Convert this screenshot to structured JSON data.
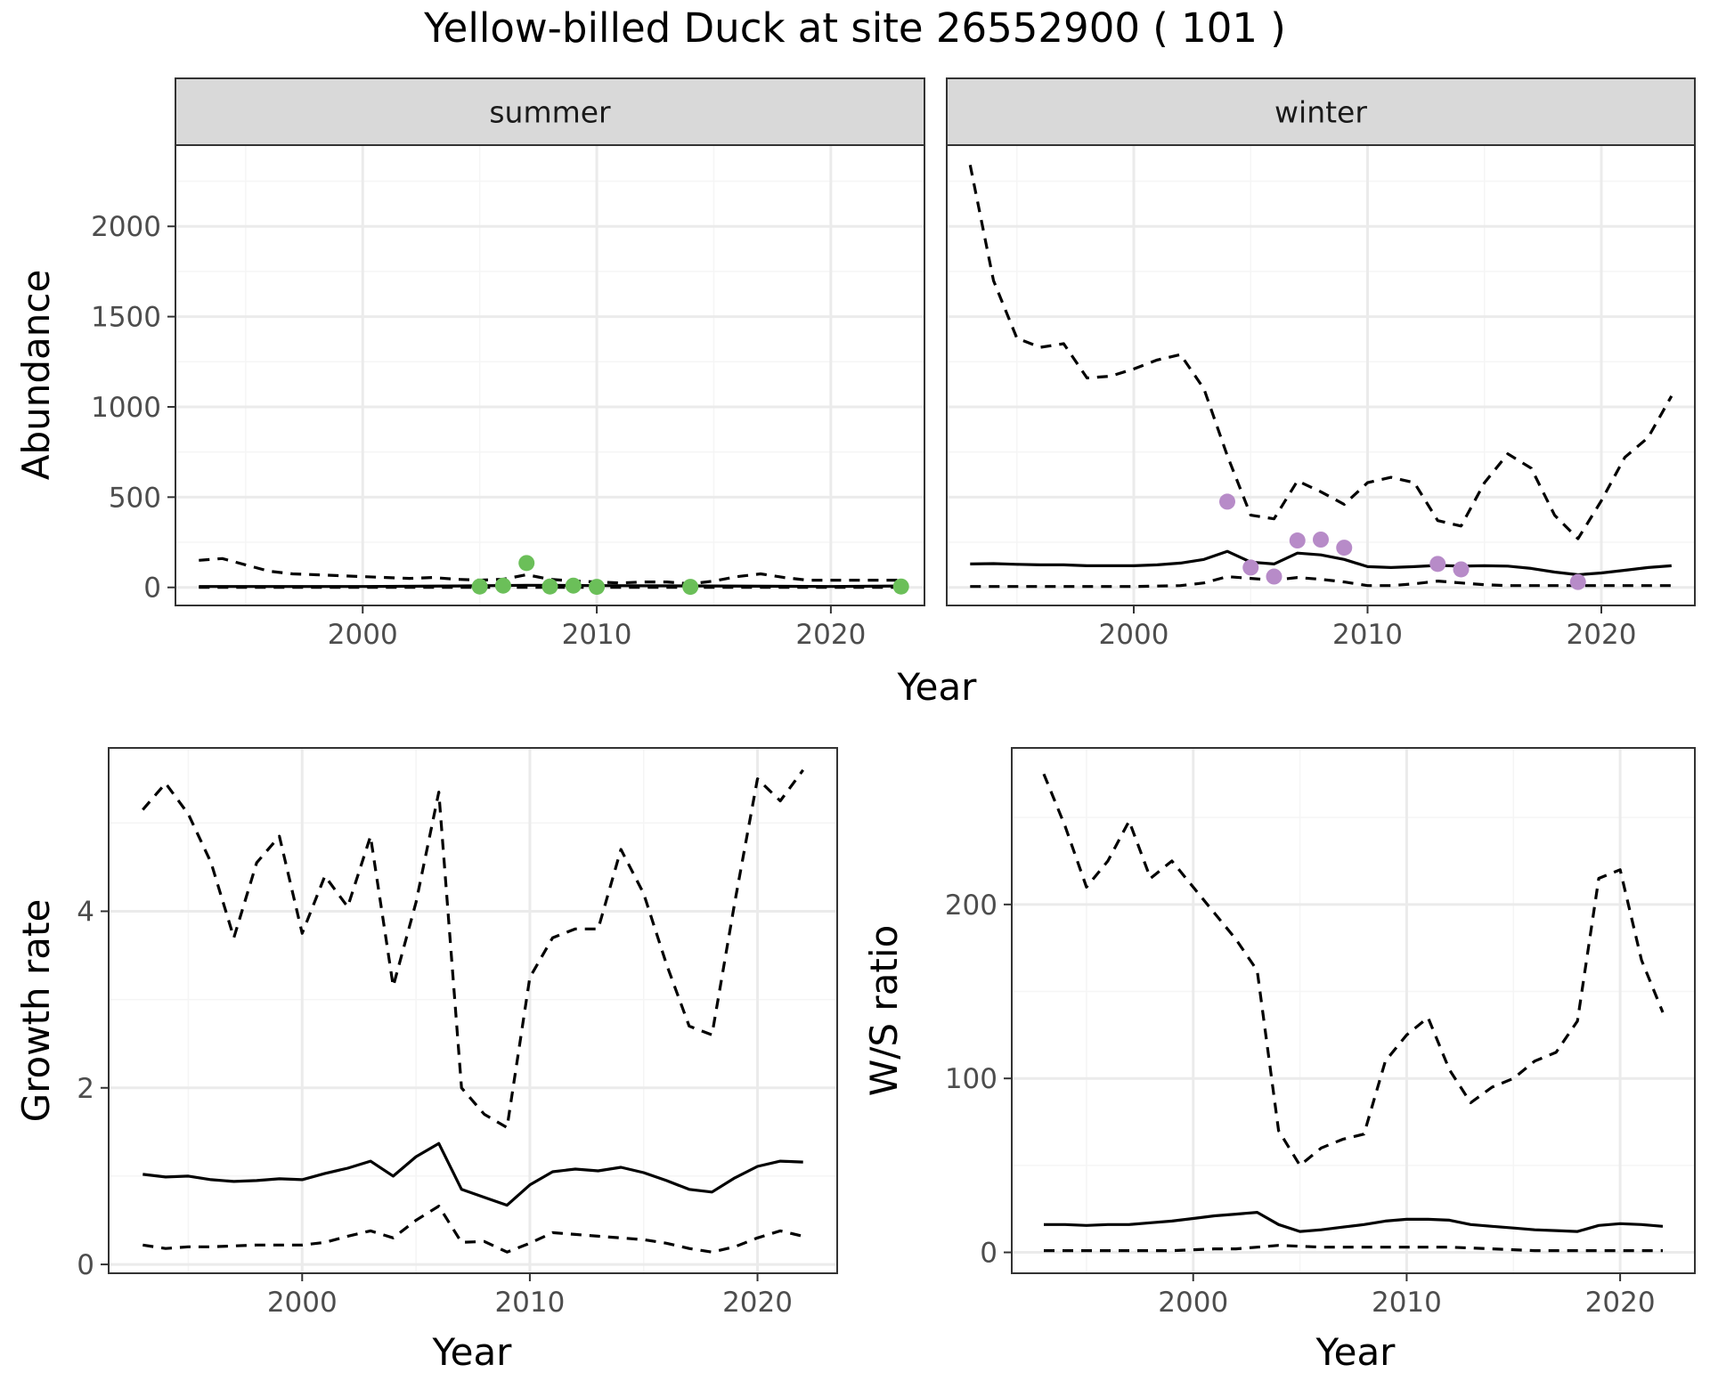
{
  "title": "Yellow-billed Duck at site 26552900 ( 101 )",
  "colors": {
    "summer_points": "#6bbf59",
    "winter_points": "#b78bc8",
    "line": "#000000",
    "strip_fill": "#d9d9d9",
    "grid_major": "#ebebeb",
    "grid_minor": "#f5f5f5"
  },
  "chart_data": [
    {
      "type": "line",
      "panel": "summer",
      "strip_label": "summer",
      "xlabel": "Year",
      "ylabel": "Abundance",
      "xlim": [
        1992,
        2024
      ],
      "ylim": [
        -100,
        2450
      ],
      "xticks": [
        2000,
        2010,
        2020
      ],
      "yticks": [
        0,
        500,
        1000,
        1500,
        2000
      ],
      "series": [
        {
          "name": "mean",
          "style": "solid",
          "x": [
            1993,
            1995,
            2000,
            2004,
            2007,
            2010,
            2015,
            2020,
            2023
          ],
          "y": [
            5,
            5,
            5,
            8,
            12,
            10,
            8,
            5,
            8
          ]
        },
        {
          "name": "upper",
          "style": "dashed",
          "x": [
            1993,
            1994,
            1995,
            1996,
            1997,
            1998,
            1999,
            2000,
            2001,
            2002,
            2003,
            2004,
            2005,
            2006,
            2007,
            2008,
            2009,
            2010,
            2011,
            2012,
            2013,
            2014,
            2015,
            2016,
            2017,
            2018,
            2019,
            2020,
            2021,
            2022,
            2023
          ],
          "y": [
            150,
            160,
            125,
            90,
            75,
            70,
            65,
            60,
            55,
            50,
            55,
            45,
            40,
            45,
            70,
            45,
            35,
            30,
            25,
            30,
            30,
            20,
            35,
            60,
            75,
            55,
            40,
            40,
            40,
            40,
            40
          ]
        },
        {
          "name": "lower",
          "style": "dashed",
          "x": [
            1993,
            2000,
            2010,
            2020,
            2023
          ],
          "y": [
            0,
            0,
            0,
            0,
            0
          ]
        },
        {
          "name": "observed",
          "style": "points",
          "x": [
            2005,
            2006,
            2007,
            2008,
            2009,
            2010,
            2014,
            2023
          ],
          "y": [
            5,
            10,
            135,
            5,
            10,
            3,
            3,
            5
          ]
        }
      ]
    },
    {
      "type": "line",
      "panel": "winter",
      "strip_label": "winter",
      "xlabel": "Year",
      "ylabel": "Abundance",
      "xlim": [
        1992,
        2024
      ],
      "ylim": [
        -100,
        2450
      ],
      "xticks": [
        2000,
        2010,
        2020
      ],
      "yticks": [
        0,
        500,
        1000,
        1500,
        2000
      ],
      "series": [
        {
          "name": "mean",
          "style": "solid",
          "x": [
            1993,
            1994,
            1995,
            1996,
            1997,
            1998,
            1999,
            2000,
            2001,
            2002,
            2003,
            2004,
            2005,
            2006,
            2007,
            2008,
            2009,
            2010,
            2011,
            2012,
            2013,
            2014,
            2015,
            2016,
            2017,
            2018,
            2019,
            2020,
            2021,
            2022,
            2023
          ],
          "y": [
            130,
            132,
            128,
            125,
            125,
            120,
            120,
            120,
            125,
            135,
            155,
            200,
            140,
            130,
            190,
            180,
            155,
            115,
            110,
            115,
            122,
            118,
            120,
            118,
            105,
            85,
            70,
            80,
            95,
            110,
            120
          ]
        },
        {
          "name": "upper",
          "style": "dashed",
          "x": [
            1993,
            1994,
            1995,
            1996,
            1997,
            1998,
            1999,
            2000,
            2001,
            2002,
            2003,
            2004,
            2005,
            2006,
            2007,
            2008,
            2009,
            2010,
            2011,
            2012,
            2013,
            2014,
            2015,
            2016,
            2017,
            2018,
            2019,
            2020,
            2021,
            2022,
            2023
          ],
          "y": [
            2340,
            1700,
            1380,
            1330,
            1350,
            1160,
            1170,
            1210,
            1260,
            1290,
            1100,
            730,
            400,
            380,
            590,
            530,
            460,
            580,
            610,
            580,
            370,
            340,
            580,
            740,
            660,
            400,
            270,
            480,
            720,
            830,
            1060
          ]
        },
        {
          "name": "lower",
          "style": "dashed",
          "x": [
            1993,
            1996,
            2000,
            2002,
            2003,
            2004,
            2005,
            2006,
            2007,
            2008,
            2009,
            2010,
            2011,
            2012,
            2013,
            2014,
            2015,
            2016,
            2017,
            2018,
            2019,
            2020,
            2023
          ],
          "y": [
            5,
            5,
            5,
            10,
            25,
            60,
            50,
            40,
            55,
            45,
            30,
            10,
            10,
            20,
            35,
            25,
            15,
            10,
            10,
            10,
            10,
            10,
            10
          ]
        },
        {
          "name": "observed",
          "style": "points",
          "x": [
            2004,
            2005,
            2006,
            2007,
            2008,
            2009,
            2013,
            2014,
            2019
          ],
          "y": [
            475,
            110,
            60,
            260,
            265,
            220,
            130,
            100,
            30
          ]
        }
      ]
    },
    {
      "type": "line",
      "panel": "growth",
      "xlabel": "Year",
      "ylabel": "Growth rate",
      "xlim": [
        1991.5,
        2023.5
      ],
      "ylim": [
        -0.1,
        5.85
      ],
      "xticks": [
        2000,
        2010,
        2020
      ],
      "yticks": [
        0,
        2,
        4
      ],
      "series": [
        {
          "name": "mean",
          "style": "solid",
          "x": [
            1993,
            1994,
            1995,
            1996,
            1997,
            1998,
            1999,
            2000,
            2001,
            2002,
            2003,
            2004,
            2005,
            2006,
            2007,
            2008,
            2009,
            2010,
            2011,
            2012,
            2013,
            2014,
            2015,
            2016,
            2017,
            2018,
            2019,
            2020,
            2021,
            2022
          ],
          "y": [
            1.02,
            0.99,
            1.0,
            0.96,
            0.94,
            0.95,
            0.97,
            0.96,
            1.03,
            1.09,
            1.17,
            1.0,
            1.22,
            1.37,
            0.85,
            0.76,
            0.67,
            0.9,
            1.05,
            1.08,
            1.06,
            1.1,
            1.04,
            0.95,
            0.85,
            0.82,
            0.98,
            1.11,
            1.17,
            1.16
          ]
        },
        {
          "name": "upper",
          "style": "dashed",
          "x": [
            1993,
            1994,
            1995,
            1996,
            1997,
            1998,
            1999,
            2000,
            2001,
            2002,
            2003,
            2004,
            2005,
            2006,
            2007,
            2008,
            2009,
            2010,
            2011,
            2012,
            2013,
            2014,
            2015,
            2016,
            2017,
            2018,
            2019,
            2020,
            2021,
            2022
          ],
          "y": [
            5.15,
            5.45,
            5.1,
            4.55,
            3.7,
            4.55,
            4.85,
            3.75,
            4.4,
            4.05,
            4.85,
            3.15,
            4.1,
            5.35,
            2.0,
            1.7,
            1.55,
            3.25,
            3.7,
            3.8,
            3.8,
            4.7,
            4.2,
            3.4,
            2.7,
            2.6,
            4.1,
            5.5,
            5.25,
            5.6
          ]
        },
        {
          "name": "lower",
          "style": "dashed",
          "x": [
            1993,
            1994,
            1995,
            1996,
            1997,
            1998,
            1999,
            2000,
            2001,
            2002,
            2003,
            2004,
            2005,
            2006,
            2007,
            2008,
            2009,
            2010,
            2011,
            2012,
            2013,
            2014,
            2015,
            2016,
            2017,
            2018,
            2019,
            2020,
            2021,
            2022
          ],
          "y": [
            0.22,
            0.18,
            0.2,
            0.2,
            0.21,
            0.22,
            0.22,
            0.22,
            0.25,
            0.32,
            0.38,
            0.3,
            0.5,
            0.66,
            0.25,
            0.26,
            0.14,
            0.24,
            0.36,
            0.34,
            0.32,
            0.3,
            0.28,
            0.24,
            0.18,
            0.14,
            0.2,
            0.3,
            0.38,
            0.32
          ]
        }
      ]
    },
    {
      "type": "line",
      "panel": "ws_ratio",
      "xlabel": "Year",
      "ylabel": "W/S ratio",
      "xlim": [
        1991.5,
        2023.5
      ],
      "ylim": [
        -12,
        290
      ],
      "xticks": [
        2000,
        2010,
        2020
      ],
      "yticks": [
        0,
        100,
        200
      ],
      "series": [
        {
          "name": "mean",
          "style": "solid",
          "x": [
            1993,
            1994,
            1995,
            1996,
            1997,
            1998,
            1999,
            2000,
            2001,
            2002,
            2003,
            2004,
            2005,
            2006,
            2007,
            2008,
            2009,
            2010,
            2011,
            2012,
            2013,
            2014,
            2015,
            2016,
            2017,
            2018,
            2019,
            2020,
            2021,
            2022
          ],
          "y": [
            16,
            16,
            15.5,
            16,
            16,
            17,
            18,
            19.5,
            21,
            22,
            23,
            16,
            12,
            13,
            14.5,
            16,
            18,
            19,
            19,
            18.5,
            16,
            15,
            14,
            13,
            12.5,
            12,
            15.5,
            16.5,
            16,
            15
          ]
        },
        {
          "name": "upper",
          "style": "dashed",
          "x": [
            1993,
            1994,
            1995,
            1996,
            1997,
            1998,
            1999,
            2000,
            2001,
            2002,
            2003,
            2004,
            2005,
            2006,
            2007,
            2008,
            2009,
            2010,
            2011,
            2012,
            2013,
            2014,
            2015,
            2016,
            2017,
            2018,
            2019,
            2020,
            2021,
            2022
          ],
          "y": [
            275,
            245,
            210,
            225,
            248,
            215,
            225,
            210,
            195,
            180,
            162,
            70,
            50,
            60,
            65,
            68,
            110,
            125,
            135,
            105,
            86,
            95,
            100,
            110,
            115,
            133,
            215,
            220,
            168,
            138
          ]
        },
        {
          "name": "lower",
          "style": "dashed",
          "x": [
            1993,
            1996,
            1999,
            2001,
            2002,
            2003,
            2004,
            2006,
            2008,
            2011,
            2012,
            2014,
            2016,
            2020,
            2022
          ],
          "y": [
            1,
            1,
            1,
            2,
            2,
            3,
            4,
            3,
            3,
            3,
            3,
            2,
            1,
            1,
            1
          ]
        }
      ]
    }
  ]
}
